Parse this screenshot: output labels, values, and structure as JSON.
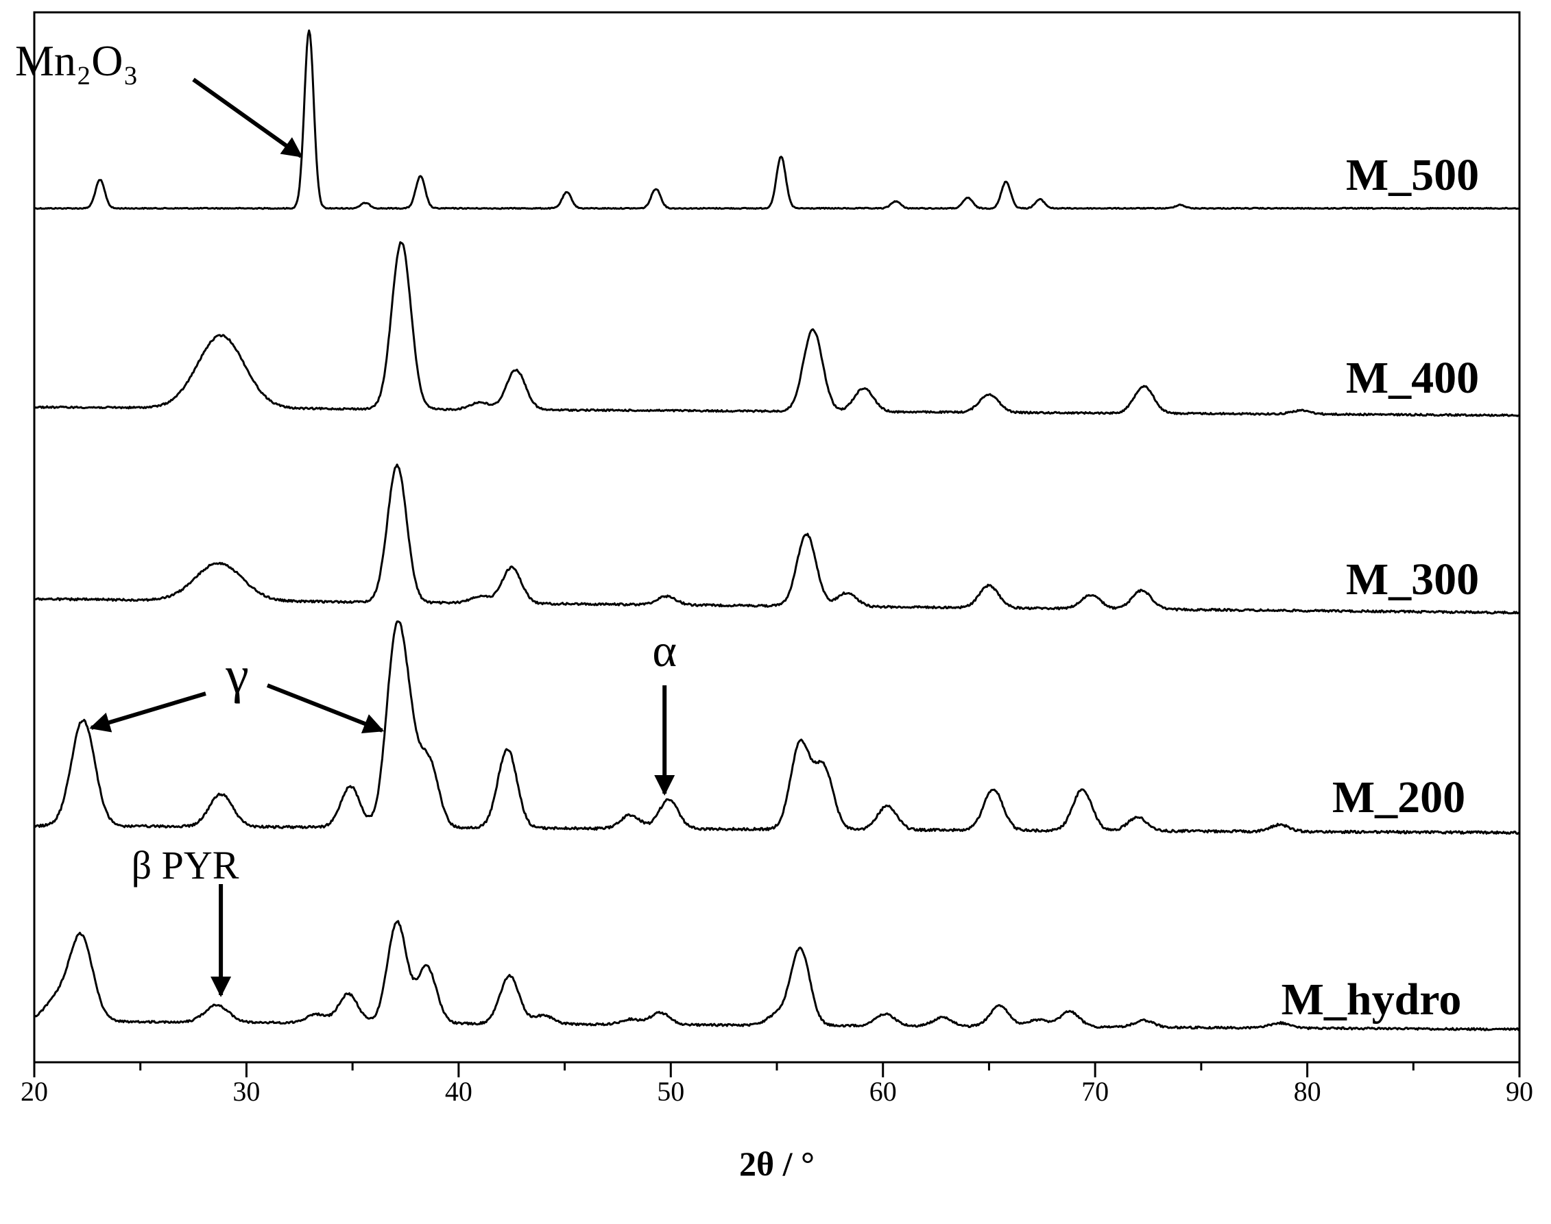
{
  "chart_data": {
    "type": "line",
    "title": "",
    "xlabel": "2θ / °",
    "ylabel": "",
    "xlim": [
      20,
      90
    ],
    "xticks": [
      20,
      30,
      40,
      50,
      60,
      70,
      80,
      90
    ],
    "xtick_labels": [
      "20",
      "30",
      "40",
      "50",
      "60",
      "70",
      "80",
      "90"
    ],
    "grid": false,
    "legend": "none",
    "series": [
      {
        "name": "M_500",
        "peaks": [
          [
            23.1,
            0.16
          ],
          [
            32.95,
            1.0
          ],
          [
            35.6,
            0.03
          ],
          [
            38.2,
            0.18
          ],
          [
            45.1,
            0.09
          ],
          [
            49.3,
            0.11
          ],
          [
            55.2,
            0.29
          ],
          [
            60.6,
            0.04
          ],
          [
            64.0,
            0.06
          ],
          [
            65.8,
            0.15
          ],
          [
            67.4,
            0.05
          ],
          [
            74.0,
            0.02
          ]
        ],
        "baseline": 0.0
      },
      {
        "name": "M_400",
        "peaks": [
          [
            28.8,
            0.4
          ],
          [
            37.3,
            0.92
          ],
          [
            41.0,
            0.04
          ],
          [
            42.7,
            0.22
          ],
          [
            56.7,
            0.45
          ],
          [
            59.1,
            0.13
          ],
          [
            65.0,
            0.1
          ],
          [
            72.3,
            0.15
          ],
          [
            79.7,
            0.02
          ]
        ],
        "baseline": 0.0
      },
      {
        "name": "M_300",
        "peaks": [
          [
            28.7,
            0.22
          ],
          [
            37.1,
            0.8
          ],
          [
            41.0,
            0.04
          ],
          [
            42.5,
            0.21
          ],
          [
            49.8,
            0.05
          ],
          [
            56.4,
            0.42
          ],
          [
            58.3,
            0.08
          ],
          [
            65.0,
            0.13
          ],
          [
            69.8,
            0.08
          ],
          [
            72.2,
            0.11
          ]
        ],
        "baseline": 0.0
      },
      {
        "name": "M_200",
        "peaks": [
          [
            22.3,
            0.62
          ],
          [
            28.8,
            0.19
          ],
          [
            34.9,
            0.24
          ],
          [
            37.0,
            0.95
          ],
          [
            37.6,
            0.5
          ],
          [
            38.6,
            0.38
          ],
          [
            42.3,
            0.46
          ],
          [
            48.1,
            0.08
          ],
          [
            49.9,
            0.17
          ],
          [
            56.1,
            0.5
          ],
          [
            57.2,
            0.36
          ],
          [
            60.2,
            0.14
          ],
          [
            65.2,
            0.24
          ],
          [
            69.4,
            0.24
          ],
          [
            72.0,
            0.08
          ],
          [
            78.7,
            0.04
          ]
        ],
        "baseline": 0.0
      },
      {
        "name": "M_hydro",
        "peaks": [
          [
            21.0,
            0.12
          ],
          [
            22.2,
            0.5
          ],
          [
            28.6,
            0.1
          ],
          [
            33.3,
            0.05
          ],
          [
            34.8,
            0.17
          ],
          [
            37.1,
            0.59
          ],
          [
            38.5,
            0.33
          ],
          [
            42.4,
            0.28
          ],
          [
            44.0,
            0.05
          ],
          [
            48.1,
            0.03
          ],
          [
            49.5,
            0.07
          ],
          [
            55.0,
            0.06
          ],
          [
            56.1,
            0.45
          ],
          [
            60.1,
            0.07
          ],
          [
            62.8,
            0.05
          ],
          [
            65.5,
            0.12
          ],
          [
            67.3,
            0.04
          ],
          [
            68.8,
            0.09
          ],
          [
            72.3,
            0.04
          ],
          [
            78.7,
            0.03
          ]
        ],
        "baseline": 0.0
      }
    ],
    "annotations": {
      "mn2o3": {
        "label": "Mn₂O₃",
        "points_to": [
          32.9,
          "M_500"
        ]
      },
      "gamma": {
        "label": "γ",
        "points_to": [
          [
            22.3,
            "M_200"
          ],
          [
            36.4,
            "M_200"
          ]
        ]
      },
      "alpha": {
        "label": "α",
        "points_to": [
          49.9,
          "M_200"
        ]
      },
      "beta_pyr": {
        "label": "β PYR",
        "points_to": [
          28.6,
          "M_hydro"
        ]
      }
    }
  }
}
